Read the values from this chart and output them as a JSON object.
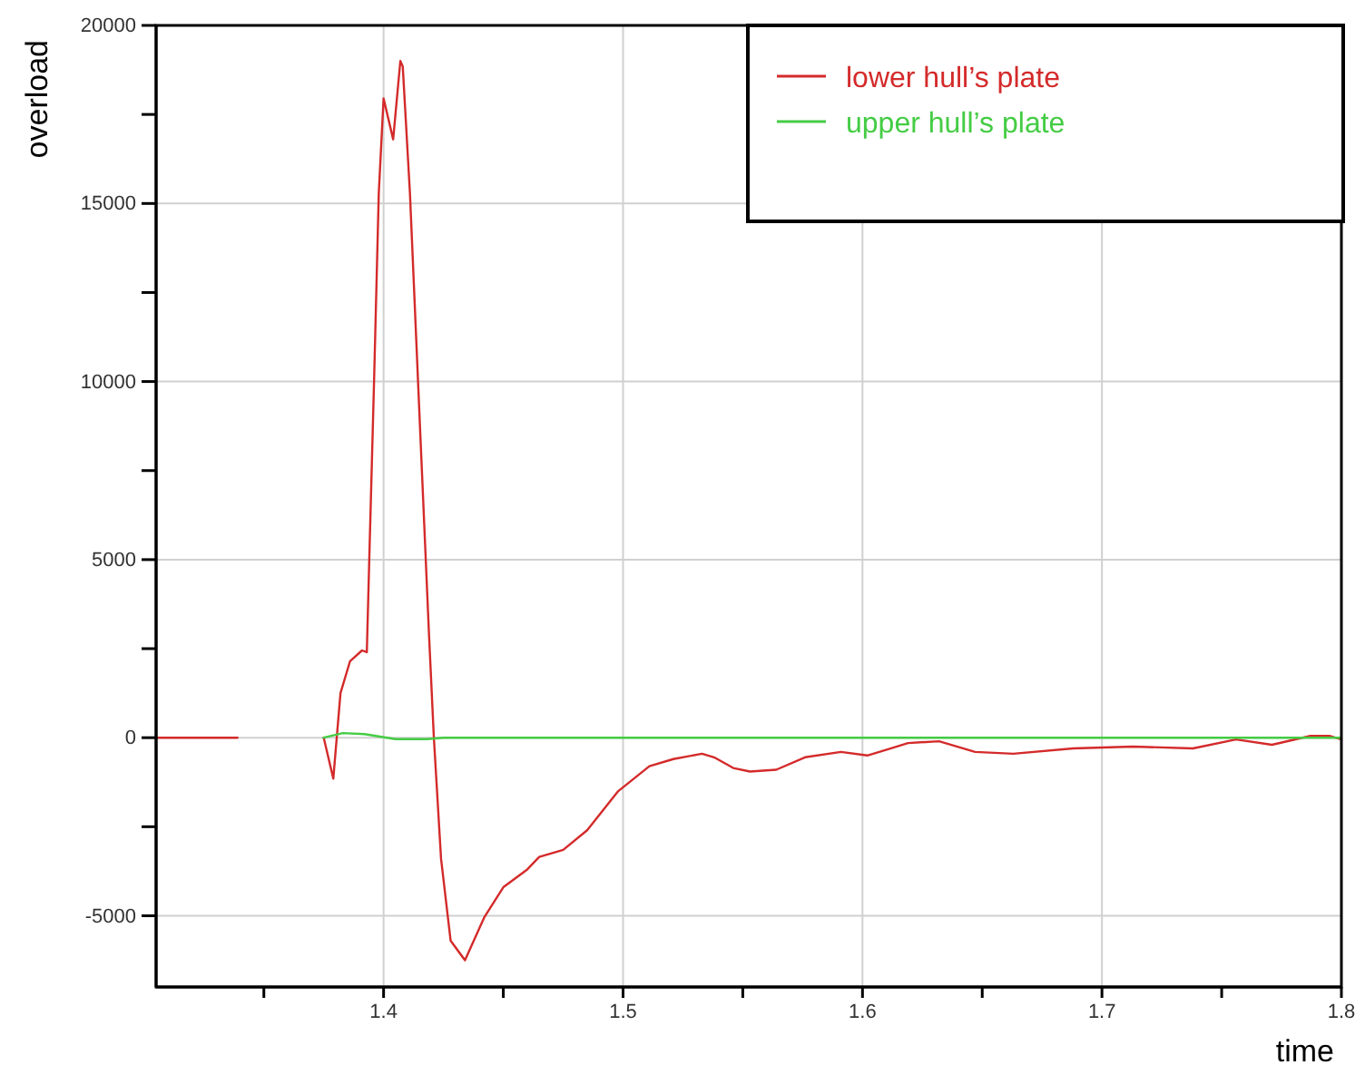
{
  "chart_data": {
    "type": "line",
    "xlabel": "time",
    "ylabel": "overload",
    "xlim": [
      1.305,
      1.8
    ],
    "ylim": [
      -7000,
      20000
    ],
    "xticks": [
      {
        "value": 1.35,
        "label": null
      },
      1.4,
      {
        "value": 1.45,
        "label": null
      },
      1.5,
      {
        "value": 1.55,
        "label": null
      },
      1.6,
      {
        "value": 1.65,
        "label": null
      },
      1.7,
      {
        "value": 1.75,
        "label": null
      },
      1.8
    ],
    "yticks": [
      -5000,
      {
        "value": -2500,
        "label": null
      },
      0,
      {
        "value": 2500,
        "label": null
      },
      5000,
      {
        "value": 7500,
        "label": null
      },
      10000,
      {
        "value": 12500,
        "label": null
      },
      15000,
      {
        "value": 17500,
        "label": null
      },
      20000
    ],
    "grid": true,
    "legend": "top right",
    "marker": "none",
    "line_style": "solid",
    "series": [
      {
        "name": "lower hull’s plate",
        "color": "#d42a2a",
        "x": [
          1.305,
          1.339,
          1.357,
          1.375,
          1.379,
          1.382,
          1.386,
          1.391,
          1.393,
          1.394,
          1.396,
          1.398,
          1.4,
          1.404,
          1.407,
          1.408,
          1.411,
          1.415,
          1.419,
          1.421,
          1.424,
          1.428,
          1.434,
          1.442,
          1.45,
          1.46,
          1.465,
          1.475,
          1.485,
          1.498,
          1.511,
          1.521,
          1.533,
          1.538,
          1.546,
          1.553,
          1.564,
          1.576,
          1.591,
          1.602,
          1.612,
          1.619,
          1.632,
          1.647,
          1.663,
          1.688,
          1.713,
          1.738,
          1.756,
          1.771,
          1.787,
          1.795,
          1.8
        ],
        "values": [
          0,
          0,
          null,
          0,
          -1150,
          1250,
          2150,
          2450,
          2400,
          4950,
          9950,
          15300,
          17950,
          16800,
          19000,
          18850,
          15300,
          9050,
          2850,
          0,
          -3400,
          -5700,
          -6250,
          -5050,
          -4200,
          -3700,
          -3350,
          -3150,
          -2600,
          -1500,
          -800,
          -600,
          -450,
          -550,
          -850,
          -950,
          -900,
          -550,
          -400,
          -500,
          -300,
          -150,
          -100,
          -400,
          -450,
          -300,
          -250,
          -300,
          -50,
          -200,
          50,
          50,
          -50
        ]
      },
      {
        "name": "upper hull’s plate",
        "color": "#44cc44",
        "x": [
          1.375,
          1.383,
          1.392,
          1.405,
          1.418,
          1.425,
          1.8
        ],
        "values": [
          0,
          130,
          100,
          -40,
          -40,
          0,
          0
        ]
      }
    ]
  }
}
